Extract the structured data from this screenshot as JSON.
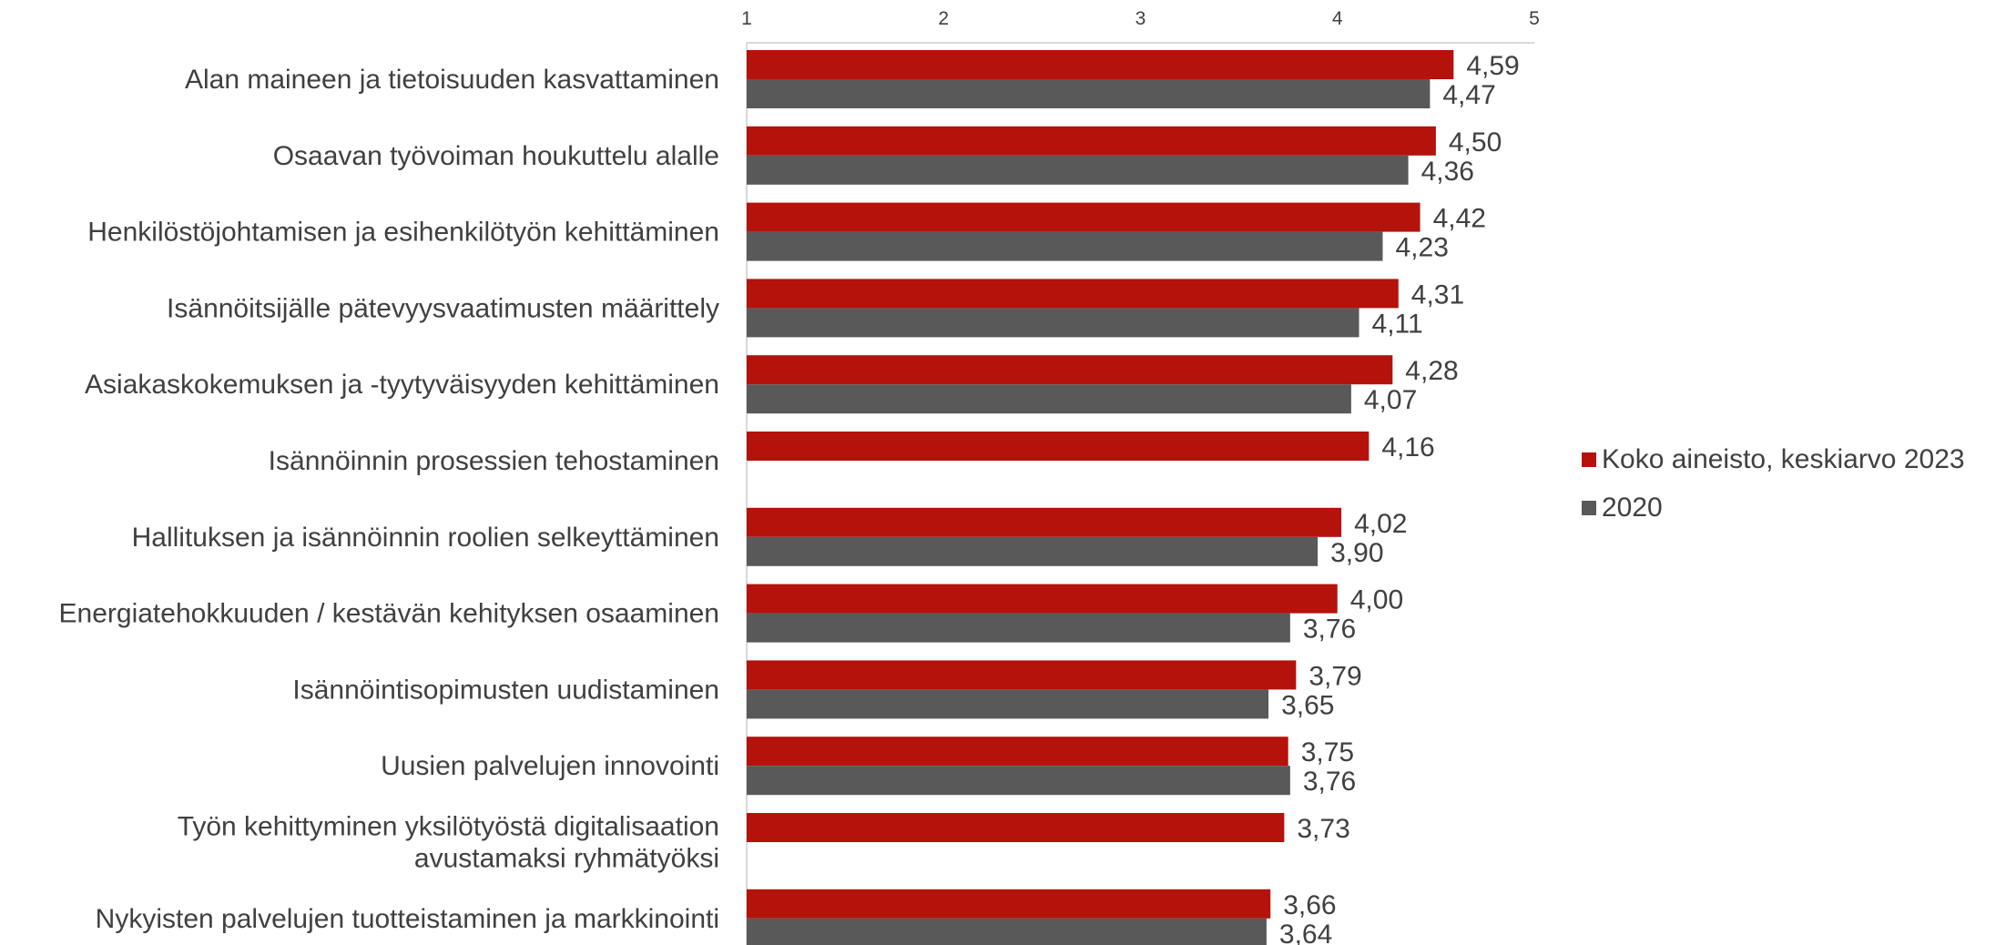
{
  "chart_data": {
    "type": "bar",
    "orientation": "horizontal",
    "xlim": [
      1,
      5
    ],
    "ticks": [
      "1",
      "2",
      "3",
      "4",
      "5"
    ],
    "categories": [
      [
        "Alan maineen ja tietoisuuden kasvattaminen"
      ],
      [
        "Osaavan työvoiman houkuttelu alalle"
      ],
      [
        "Henkilöstöjohtamisen ja esihenkilötyön kehittäminen"
      ],
      [
        "Isännöitsijälle pätevyysvaatimusten määrittely"
      ],
      [
        "Asiakaskokemuksen ja -tyytyväisyyden kehittäminen"
      ],
      [
        "Isännöinnin prosessien tehostaminen"
      ],
      [
        "Hallituksen ja isännöinnin roolien selkeyttäminen"
      ],
      [
        "Energiatehokkuuden / kestävän kehityksen osaaminen"
      ],
      [
        "Isännöintisopimusten uudistaminen"
      ],
      [
        "Uusien palvelujen innovointi"
      ],
      [
        "Työn kehittyminen yksilötyöstä digitalisaation",
        "avustamaksi ryhmätyöksi"
      ],
      [
        "Nykyisten palvelujen tuotteistaminen ja markkinointi"
      ]
    ],
    "series": [
      {
        "name": "Koko aineisto, keskiarvo 2023",
        "color": "#b5120b",
        "values": [
          4.59,
          4.5,
          4.42,
          4.31,
          4.28,
          4.16,
          4.02,
          4.0,
          3.79,
          3.75,
          3.73,
          3.66
        ],
        "labels": [
          "4,59",
          "4,50",
          "4,42",
          "4,31",
          "4,28",
          "4,16",
          "4,02",
          "4,00",
          "3,79",
          "3,75",
          "3,73",
          "3,66"
        ]
      },
      {
        "name": "2020",
        "color": "#595959",
        "values": [
          4.47,
          4.36,
          4.23,
          4.11,
          4.07,
          null,
          3.9,
          3.76,
          3.65,
          3.76,
          null,
          3.64
        ],
        "labels": [
          "4,47",
          "4,36",
          "4,23",
          "4,11",
          "4,07",
          null,
          "3,90",
          "3,76",
          "3,65",
          "3,76",
          null,
          "3,64"
        ]
      }
    ],
    "legend_position": "right",
    "grid": false
  }
}
